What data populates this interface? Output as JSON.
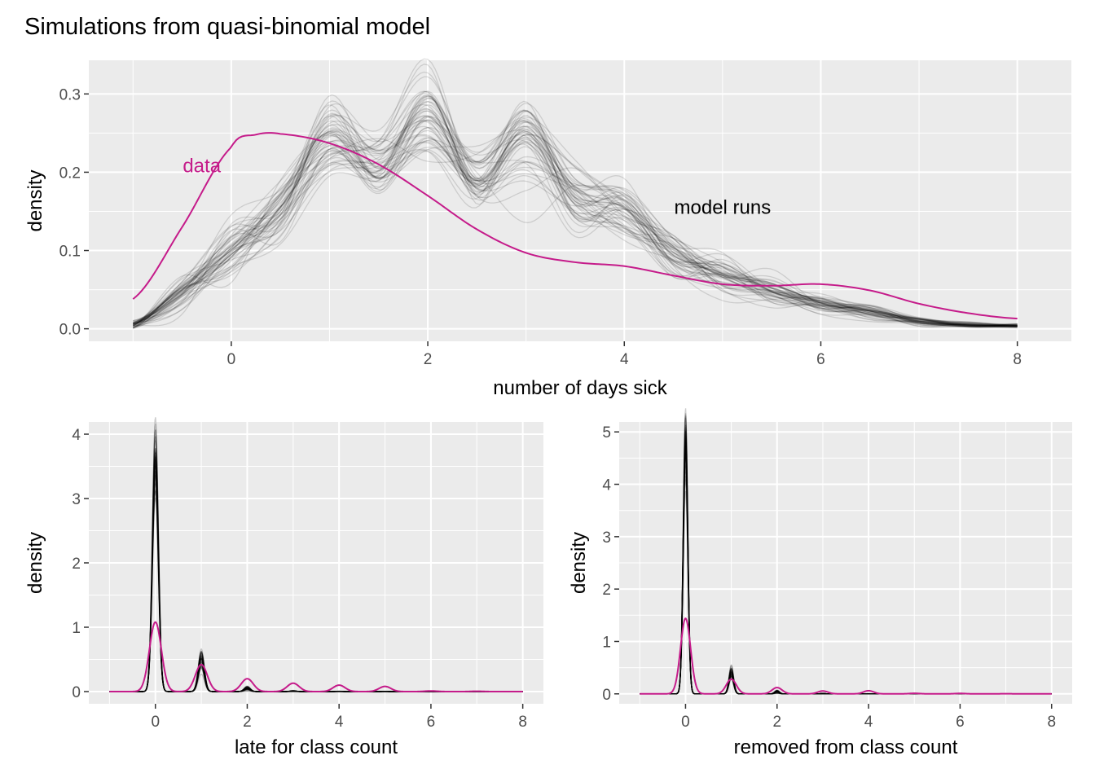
{
  "figure": {
    "title": "Simulations from quasi-binomial model"
  },
  "colors": {
    "panel_background": "#ebebeb",
    "grid_major": "#ffffff",
    "data_line": "#c51b8a",
    "model_line": "#000000"
  },
  "chart_data": [
    {
      "type": "line",
      "xlabel": "number of days sick",
      "ylabel": "density",
      "xlim": [
        -1.45,
        8.55
      ],
      "ylim": [
        -0.016,
        0.343
      ],
      "xticks": [
        0,
        2,
        4,
        6,
        8
      ],
      "yticks": [
        0.0,
        0.1,
        0.2,
        0.3
      ],
      "ytick_labels": [
        "0.0",
        "0.1",
        "0.2",
        "0.3"
      ],
      "grid": true,
      "annotations": [
        {
          "label": "data",
          "x": -0.3,
          "y": 0.2,
          "color": "#c51b8a"
        },
        {
          "label": "model runs",
          "x": 5.0,
          "y": 0.147,
          "color": "#000000"
        }
      ],
      "series": [
        {
          "name": "data",
          "x": [
            -1,
            -0.5,
            0,
            0.25,
            0.5,
            1,
            1.5,
            2,
            2.5,
            3,
            3.5,
            4,
            4.5,
            5,
            5.5,
            6,
            6.5,
            7,
            7.5,
            8
          ],
          "values": [
            0.038,
            0.13,
            0.232,
            0.248,
            0.249,
            0.237,
            0.21,
            0.17,
            0.127,
            0.097,
            0.085,
            0.08,
            0.068,
            0.057,
            0.055,
            0.057,
            0.049,
            0.032,
            0.02,
            0.013
          ]
        },
        {
          "name": "model runs",
          "x": [
            -1,
            -0.5,
            0,
            0.5,
            1,
            1.5,
            2,
            2.5,
            3,
            3.5,
            4,
            4.5,
            5,
            5.5,
            6,
            6.5,
            7,
            7.5,
            8
          ],
          "values": [
            0.005,
            0.045,
            0.105,
            0.15,
            0.24,
            0.21,
            0.27,
            0.19,
            0.24,
            0.16,
            0.15,
            0.095,
            0.07,
            0.05,
            0.032,
            0.022,
            0.01,
            0.005,
            0.004
          ],
          "band": [
            0.003,
            0.01,
            0.018,
            0.022,
            0.03,
            0.02,
            0.035,
            0.02,
            0.03,
            0.02,
            0.018,
            0.014,
            0.01,
            0.008,
            0.006,
            0.005,
            0.003,
            0.002,
            0.001
          ],
          "runs": 50
        }
      ]
    },
    {
      "type": "line",
      "xlabel": "late for class count",
      "ylabel": "density",
      "xlim": [
        -1.45,
        8.45
      ],
      "ylim": [
        -0.19,
        4.19
      ],
      "xticks": [
        0,
        2,
        4,
        6,
        8
      ],
      "yticks": [
        0,
        1,
        2,
        3,
        4
      ],
      "ytick_labels": [
        "0",
        "1",
        "2",
        "3",
        "4"
      ],
      "grid": true,
      "series": [
        {
          "name": "data",
          "x": [
            0,
            1,
            2,
            3,
            4,
            5,
            6,
            7
          ],
          "values": [
            1.08,
            0.42,
            0.2,
            0.13,
            0.1,
            0.08,
            0.01,
            0.005
          ],
          "width": 0.13
        },
        {
          "name": "model runs",
          "x": [
            0,
            1,
            2,
            3,
            4,
            5,
            6,
            7
          ],
          "values": [
            3.6,
            0.5,
            0.05,
            0.008,
            0.002,
            0.001,
            0.0005,
            0.0002
          ],
          "band": [
            0.28,
            0.08,
            0.02,
            0.005,
            0.002,
            0.001,
            0,
            0
          ],
          "width": 0.065,
          "runs": 50
        }
      ]
    },
    {
      "type": "line",
      "xlabel": "removed from class count",
      "ylabel": "density",
      "xlim": [
        -1.45,
        8.45
      ],
      "ylim": [
        -0.19,
        5.19
      ],
      "xticks": [
        0,
        2,
        4,
        6,
        8
      ],
      "yticks": [
        0,
        1,
        2,
        3,
        4,
        5
      ],
      "ytick_labels": [
        "0",
        "1",
        "2",
        "3",
        "4",
        "5"
      ],
      "grid": true,
      "series": [
        {
          "name": "data",
          "x": [
            0,
            1,
            2,
            3,
            4,
            5,
            6,
            7
          ],
          "values": [
            1.44,
            0.28,
            0.12,
            0.055,
            0.06,
            0.01,
            0.008,
            0.003
          ],
          "width": 0.11
        },
        {
          "name": "model runs",
          "x": [
            0,
            1,
            2,
            3,
            4,
            5,
            6,
            7
          ],
          "values": [
            4.75,
            0.4,
            0.04,
            0.005,
            0.002,
            0.001,
            0.0005,
            0.0002
          ],
          "band": [
            0.3,
            0.08,
            0.015,
            0.004,
            0.001,
            0,
            0,
            0
          ],
          "width": 0.05,
          "runs": 50
        }
      ]
    }
  ]
}
